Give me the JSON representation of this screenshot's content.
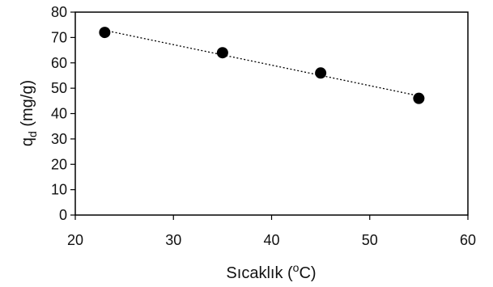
{
  "chart_data": {
    "type": "scatter",
    "x": [
      23,
      35,
      45,
      55
    ],
    "y": [
      72,
      64,
      56,
      46
    ],
    "xlim": [
      20,
      60
    ],
    "ylim": [
      0,
      80
    ],
    "xticks": [
      "20",
      "30",
      "40",
      "50",
      "60"
    ],
    "yticks": [
      "0",
      "10",
      "20",
      "30",
      "40",
      "50",
      "60",
      "70",
      "80"
    ],
    "xlabel": {
      "prefix": "Sıcaklık (",
      "superscript": "o",
      "suffix": "C)"
    },
    "ylabel": {
      "base": "q",
      "subscript": "d",
      "suffix": " (mg/g)"
    },
    "grid": false,
    "legend": "none",
    "trendline": "dotted linear fit",
    "colors": {
      "marker": "#000000",
      "trendline": "#000000",
      "axes": "#000000"
    }
  }
}
